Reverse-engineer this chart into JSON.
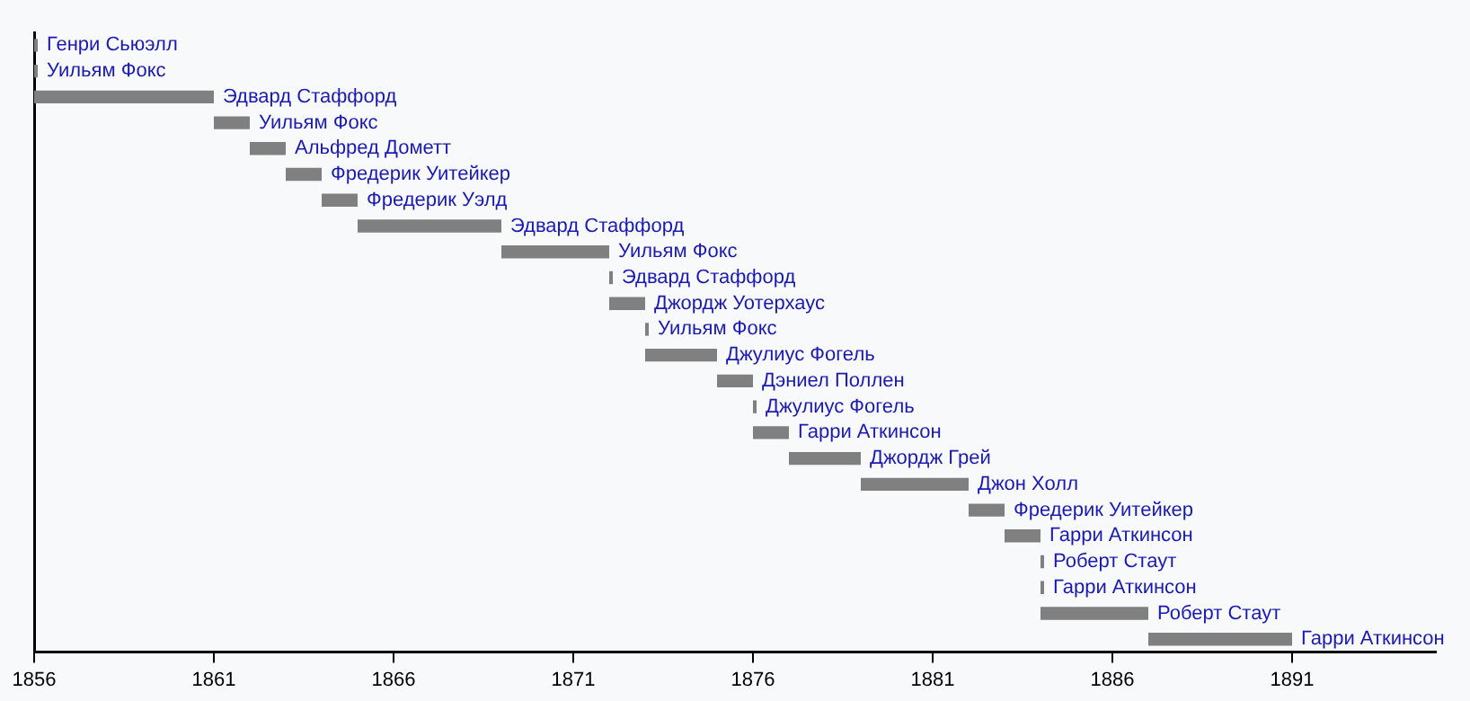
{
  "chart_data": {
    "type": "bar",
    "orientation": "horizontal",
    "categories": [
      "Генри Сьюэлл",
      "Уильям Фокс",
      "Эдвард Стаффорд",
      "Уильям Фокс",
      "Альфред Дометт",
      "Фредерик Уитейкер",
      "Фредерик Уэлд",
      "Эдвард Стаффорд",
      "Уильям Фокс",
      "Эдвард Стаффорд",
      "Джордж Уотерхаус",
      "Уильям Фокс",
      "Джулиус Фогель",
      "Дэниел Поллен",
      "Джулиус Фогель",
      "Гарри Аткинсон",
      "Джордж Грей",
      "Джон Холл",
      "Фредерик Уитейкер",
      "Гарри Аткинсон",
      "Роберт Стаут",
      "Гарри Аткинсон",
      "Роберт Стаут",
      "Гарри Аткинсон"
    ],
    "base": [
      1856,
      1856,
      1856,
      1861,
      1862,
      1863,
      1864,
      1865,
      1869,
      1872,
      1872,
      1873,
      1873,
      1875,
      1876,
      1876,
      1877,
      1879,
      1882,
      1883,
      1884,
      1884,
      1884,
      1887
    ],
    "values": [
      0.1,
      0.1,
      5,
      1,
      1,
      1,
      1,
      4,
      3,
      0.1,
      1,
      0.1,
      2,
      1,
      0.1,
      1,
      2,
      3,
      1,
      1,
      0.1,
      0.1,
      3,
      4
    ],
    "color": "#808080",
    "xlim": [
      1856,
      1895
    ],
    "xticks": [
      1856,
      1861,
      1866,
      1871,
      1876,
      1881,
      1886,
      1891
    ],
    "tick_labels": "x",
    "grid": false,
    "legend": false
  }
}
